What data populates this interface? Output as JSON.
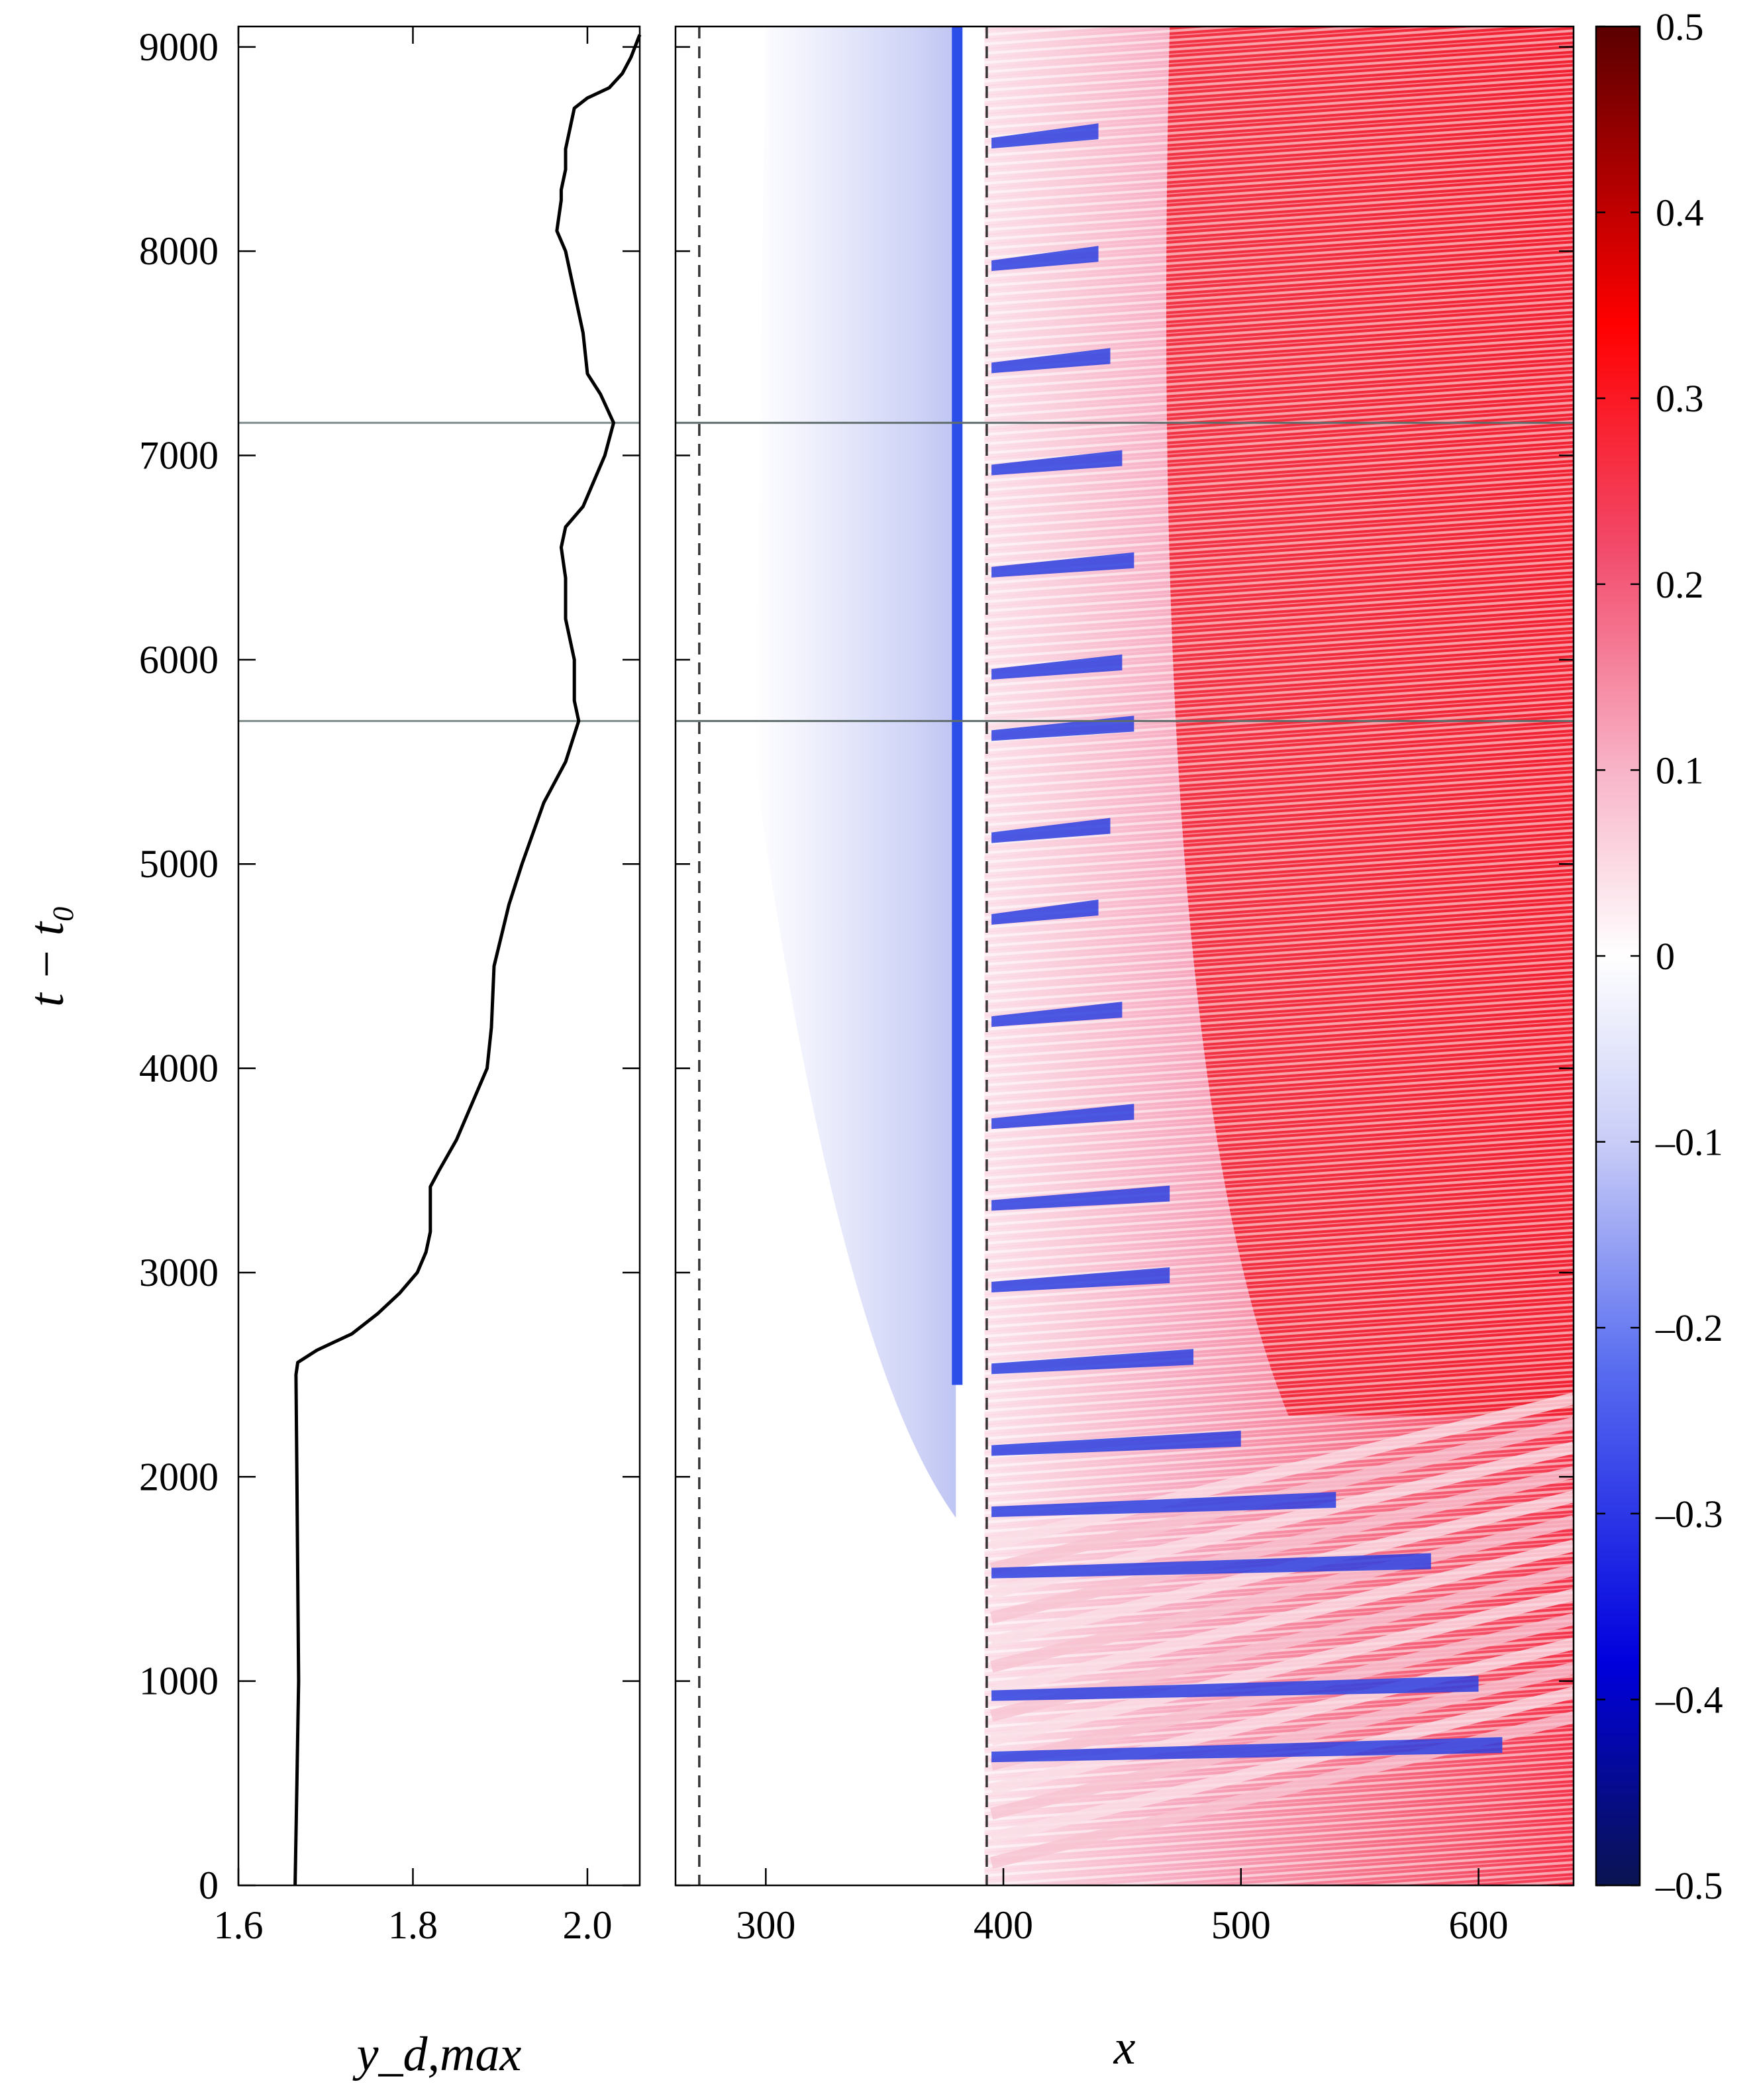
{
  "chart_data": [
    {
      "type": "line",
      "panel": "left",
      "xlabel": "y_d,max",
      "ylabel": "t − t₀",
      "xlim": [
        1.6,
        2.06
      ],
      "ylim": [
        0,
        9100
      ],
      "xticks": [
        "1.6",
        "1.8",
        "2.0"
      ],
      "yticks": [
        "0",
        "1000",
        "2000",
        "3000",
        "4000",
        "5000",
        "6000",
        "7000",
        "8000",
        "9000"
      ],
      "reference_lines_t": [
        5700,
        7160
      ],
      "series": [
        {
          "color": "#000000",
          "points": [
            [
              1.665,
              0
            ],
            [
              1.667,
              500
            ],
            [
              1.669,
              1000
            ],
            [
              1.668,
              1500
            ],
            [
              1.667,
              2000
            ],
            [
              1.666,
              2500
            ],
            [
              1.668,
              2560
            ],
            [
              1.69,
              2620
            ],
            [
              1.73,
              2700
            ],
            [
              1.76,
              2800
            ],
            [
              1.785,
              2900
            ],
            [
              1.805,
              3000
            ],
            [
              1.815,
              3100
            ],
            [
              1.82,
              3200
            ],
            [
              1.82,
              3420
            ],
            [
              1.83,
              3500
            ],
            [
              1.85,
              3650
            ],
            [
              1.87,
              3850
            ],
            [
              1.885,
              4000
            ],
            [
              1.89,
              4200
            ],
            [
              1.893,
              4500
            ],
            [
              1.91,
              4800
            ],
            [
              1.925,
              5000
            ],
            [
              1.95,
              5300
            ],
            [
              1.975,
              5500
            ],
            [
              1.99,
              5700
            ],
            [
              1.985,
              5800
            ],
            [
              1.985,
              6000
            ],
            [
              1.975,
              6200
            ],
            [
              1.975,
              6400
            ],
            [
              1.97,
              6550
            ],
            [
              1.975,
              6650
            ],
            [
              1.995,
              6750
            ],
            [
              2.01,
              6900
            ],
            [
              2.02,
              7000
            ],
            [
              2.03,
              7160
            ],
            [
              2.015,
              7300
            ],
            [
              2.0,
              7400
            ],
            [
              1.995,
              7600
            ],
            [
              1.985,
              7800
            ],
            [
              1.975,
              8000
            ],
            [
              1.965,
              8100
            ],
            [
              1.97,
              8250
            ],
            [
              1.97,
              8300
            ],
            [
              1.975,
              8400
            ],
            [
              1.975,
              8500
            ],
            [
              1.98,
              8600
            ],
            [
              1.985,
              8700
            ],
            [
              2.0,
              8750
            ],
            [
              2.025,
              8800
            ],
            [
              2.04,
              8870
            ],
            [
              2.05,
              8950
            ],
            [
              2.06,
              9060
            ]
          ]
        }
      ]
    },
    {
      "type": "heatmap",
      "panel": "right",
      "xlabel": "x",
      "ylabel": "",
      "xlim": [
        262,
        640
      ],
      "ylim": [
        0,
        9100
      ],
      "xticks": [
        "300",
        "400",
        "500",
        "600"
      ],
      "dashed_lines_x": [
        272,
        393
      ],
      "reference_lines_t": [
        5700,
        7160
      ],
      "colorbar": {
        "min": -0.5,
        "max": 0.5,
        "ticks": [
          "0.5",
          "0.4",
          "0.3",
          "0.2",
          "0.1",
          "0",
          "–0.1",
          "–0.2",
          "–0.3",
          "–0.4",
          "–0.5"
        ],
        "colors": [
          "#0a1450",
          "#0000ff",
          "#ffffff",
          "#ff0000",
          "#550000"
        ]
      }
    }
  ]
}
